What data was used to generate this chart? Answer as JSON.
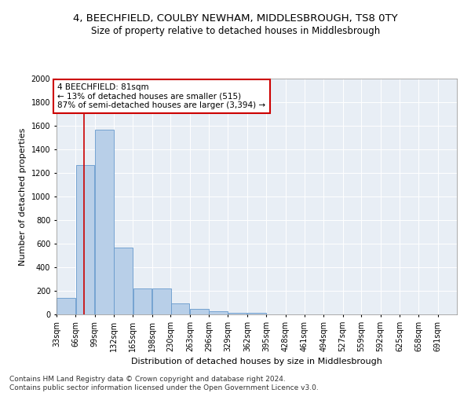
{
  "title": "4, BEECHFIELD, COULBY NEWHAM, MIDDLESBROUGH, TS8 0TY",
  "subtitle": "Size of property relative to detached houses in Middlesbrough",
  "xlabel": "Distribution of detached houses by size in Middlesbrough",
  "ylabel": "Number of detached properties",
  "footer_line1": "Contains HM Land Registry data © Crown copyright and database right 2024.",
  "footer_line2": "Contains public sector information licensed under the Open Government Licence v3.0.",
  "annotation_title": "4 BEECHFIELD: 81sqm",
  "annotation_line2": "← 13% of detached houses are smaller (515)",
  "annotation_line3": "87% of semi-detached houses are larger (3,394) →",
  "property_size": 81,
  "bar_left_edges": [
    33,
    66,
    99,
    132,
    165,
    198,
    230,
    263,
    296,
    329,
    362,
    395,
    428,
    461,
    494,
    527,
    559,
    592,
    625,
    658,
    691
  ],
  "bar_heights": [
    140,
    1265,
    1565,
    565,
    220,
    220,
    95,
    50,
    30,
    15,
    15,
    0,
    0,
    0,
    0,
    0,
    0,
    0,
    0,
    0,
    0
  ],
  "bin_width": 33,
  "bar_color": "#b8cfe8",
  "bar_edge_color": "#6699cc",
  "vline_color": "#cc0000",
  "vline_x": 81,
  "annotation_box_color": "#cc0000",
  "ylim": [
    0,
    2000
  ],
  "yticks": [
    0,
    200,
    400,
    600,
    800,
    1000,
    1200,
    1400,
    1600,
    1800,
    2000
  ],
  "x_labels": [
    "33sqm",
    "66sqm",
    "99sqm",
    "132sqm",
    "165sqm",
    "198sqm",
    "230sqm",
    "263sqm",
    "296sqm",
    "329sqm",
    "362sqm",
    "395sqm",
    "428sqm",
    "461sqm",
    "494sqm",
    "527sqm",
    "559sqm",
    "592sqm",
    "625sqm",
    "658sqm",
    "691sqm"
  ],
  "background_color": "#ffffff",
  "plot_bg_color": "#e8eef5",
  "grid_color": "#ffffff",
  "title_fontsize": 9.5,
  "subtitle_fontsize": 8.5,
  "axis_label_fontsize": 8,
  "tick_fontsize": 7,
  "annotation_fontsize": 7.5,
  "footer_fontsize": 6.5
}
